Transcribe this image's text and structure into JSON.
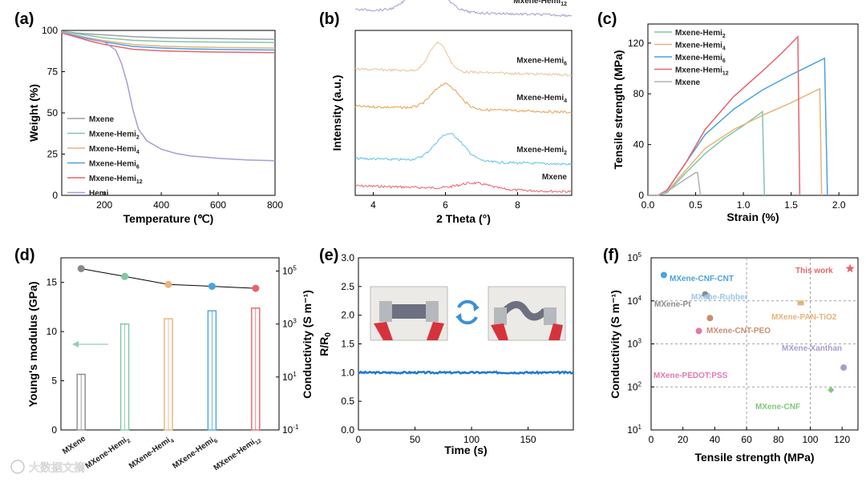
{
  "watermark": "大数据文摘",
  "chart_data": [
    {
      "panel": "(a)",
      "type": "line",
      "title": "",
      "xlabel": "Temperature (℃)",
      "ylabel": "Weight (%)",
      "xlim": [
        50,
        800
      ],
      "ylim": [
        0,
        100
      ],
      "xticks": [
        "200",
        "400",
        "600",
        "800"
      ],
      "yticks": [
        "0",
        "25",
        "50",
        "75",
        "100"
      ],
      "legend": "bottom-left",
      "series": [
        {
          "name": "Mxene",
          "color": "#9aa0a6",
          "x": [
            50,
            100,
            150,
            200,
            300,
            400,
            500,
            600,
            700,
            800
          ],
          "y": [
            99.5,
            98.5,
            97.8,
            97.3,
            96.2,
            95.6,
            95.2,
            95.0,
            94.8,
            94.6
          ]
        },
        {
          "name": "Mxene-Hemi2",
          "label_main": "Mxene-Hemi",
          "label_sub": "2",
          "color": "#7fc7a3",
          "x": [
            50,
            100,
            150,
            200,
            300,
            400,
            500,
            600,
            700,
            800
          ],
          "y": [
            99.5,
            98.0,
            96.8,
            95.5,
            94.0,
            93.4,
            93.1,
            92.9,
            92.8,
            92.7
          ]
        },
        {
          "name": "Mxene-Hemi4",
          "label_main": "Mxene-Hemi",
          "label_sub": "4",
          "color": "#e8b37a",
          "x": [
            50,
            100,
            150,
            200,
            300,
            400,
            500,
            600,
            700,
            800
          ],
          "y": [
            99.0,
            97.0,
            95.3,
            93.8,
            91.5,
            90.5,
            90.0,
            89.7,
            89.5,
            89.3
          ]
        },
        {
          "name": "Mxene-Hemi6",
          "label_main": "Mxene-Hemi",
          "label_sub": "6",
          "color": "#4aa3df",
          "x": [
            50,
            100,
            150,
            200,
            300,
            400,
            500,
            600,
            700,
            800
          ],
          "y": [
            99.0,
            96.5,
            94.6,
            93.0,
            90.3,
            89.3,
            88.8,
            88.5,
            88.3,
            88.1
          ]
        },
        {
          "name": "Mxene-Hemi12",
          "label_main": "Mxene-Hemi",
          "label_sub": "12",
          "color": "#e8636b",
          "x": [
            50,
            100,
            150,
            200,
            300,
            400,
            500,
            600,
            700,
            800
          ],
          "y": [
            98.5,
            96.0,
            93.5,
            91.5,
            88.6,
            87.6,
            87.2,
            86.9,
            86.7,
            86.5
          ]
        },
        {
          "name": "Hemi",
          "color": "#a89cd6",
          "x": [
            50,
            100,
            200,
            240,
            260,
            280,
            300,
            320,
            350,
            400,
            450,
            500,
            600,
            700,
            800
          ],
          "y": [
            99,
            97,
            93,
            88,
            80,
            68,
            52,
            40,
            33,
            28,
            25.5,
            24,
            22.5,
            21.5,
            21
          ]
        }
      ]
    },
    {
      "panel": "(b)",
      "type": "line",
      "xlabel": "2 Theta (°)",
      "ylabel": "Intensity (a.u.)",
      "xlim": [
        3.5,
        9.5
      ],
      "xticks": [
        "4",
        "6",
        "8"
      ],
      "series": [
        {
          "name": "Mxene",
          "label_main": "Mxene",
          "label_sub": "",
          "color": "#e8636b",
          "offset": 0,
          "peak": 6.8,
          "width": 0.6,
          "height": 0.12
        },
        {
          "name": "Mxene-Hemi2",
          "label_main": "Mxene-Hemi",
          "label_sub": "2",
          "color": "#62c2e8",
          "offset": 0.55,
          "peak": 6.1,
          "width": 0.55,
          "height": 0.55
        },
        {
          "name": "Mxene-Hemi4",
          "label_main": "Mxene-Hemi",
          "label_sub": "4",
          "color": "#e8a050",
          "offset": 1.6,
          "peak": 6.0,
          "width": 0.5,
          "height": 0.5
        },
        {
          "name": "Mxene-Hemi6",
          "label_main": "Mxene-Hemi",
          "label_sub": "6",
          "color": "#e8c49a",
          "offset": 2.35,
          "peak": 5.8,
          "width": 0.35,
          "height": 0.58
        },
        {
          "name": "Mxene-Hemi12",
          "label_main": "Mxene-Hemi",
          "label_sub": "12",
          "color": "#a89cd6",
          "offset": 3.55,
          "peak": 5.5,
          "width": 0.6,
          "height": 0.65
        }
      ]
    },
    {
      "panel": "(c)",
      "type": "line",
      "xlabel": "Strain (%)",
      "ylabel": "Tensile strength (MPa)",
      "xlim": [
        0,
        2.2
      ],
      "ylim": [
        0,
        135
      ],
      "xticks": [
        "0.0",
        "0.5",
        "1.0",
        "1.5",
        "2.0"
      ],
      "yticks": [
        "0",
        "40",
        "80",
        "120"
      ],
      "legend": "top-left",
      "series": [
        {
          "name": "Mxene-Hemi2",
          "label_main": "Mxene-Hemi",
          "label_sub": "2",
          "color": "#7fc7a3",
          "x": [
            0,
            0.1,
            0.2,
            0.4,
            0.6,
            0.8,
            1.0,
            1.2,
            1.22
          ],
          "y": [
            0,
            0,
            2,
            18,
            33,
            45,
            55,
            66,
            0
          ]
        },
        {
          "name": "Mxene-Hemi4",
          "label_main": "Mxene-Hemi",
          "label_sub": "4",
          "color": "#e8b37a",
          "x": [
            0,
            0.1,
            0.2,
            0.4,
            0.6,
            0.9,
            1.2,
            1.5,
            1.8,
            1.82
          ],
          "y": [
            0,
            0,
            3,
            20,
            37,
            52,
            63,
            73,
            84,
            0
          ]
        },
        {
          "name": "Mxene-Hemi6",
          "label_main": "Mxene-Hemi",
          "label_sub": "6",
          "color": "#4aa3df",
          "x": [
            0,
            0.1,
            0.2,
            0.4,
            0.6,
            0.9,
            1.2,
            1.5,
            1.85,
            1.88
          ],
          "y": [
            0,
            0,
            4,
            26,
            48,
            68,
            83,
            95,
            108,
            0
          ]
        },
        {
          "name": "Mxene-Hemi12",
          "label_main": "Mxene-Hemi",
          "label_sub": "12",
          "color": "#e8636b",
          "x": [
            0,
            0.1,
            0.2,
            0.4,
            0.6,
            0.9,
            1.2,
            1.4,
            1.57,
            1.59
          ],
          "y": [
            0,
            0,
            4,
            26,
            52,
            78,
            98,
            112,
            125,
            0
          ]
        },
        {
          "name": "Mxene",
          "label_main": "Mxene",
          "label_sub": "",
          "color": "#b0b0b0",
          "x": [
            0,
            0.1,
            0.2,
            0.3,
            0.4,
            0.5,
            0.52,
            0.55
          ],
          "y": [
            0,
            0,
            3,
            8,
            13,
            18,
            18,
            0
          ]
        }
      ]
    },
    {
      "panel": "(d)",
      "type": "bar+line",
      "ylabel": "Young's modulus (GPa)",
      "y2label": "Conductivity (S m⁻¹)",
      "ylim": [
        0,
        17.5
      ],
      "yticks": [
        "0",
        "5",
        "10",
        "15"
      ],
      "y2log": [
        -1,
        5.5
      ],
      "y2ticks": [
        {
          "base": "10",
          "exp": "-1"
        },
        {
          "base": "10",
          "exp": "1"
        },
        {
          "base": "10",
          "exp": "3"
        },
        {
          "base": "10",
          "exp": "5"
        }
      ],
      "categories": [
        {
          "main": "MXene",
          "sub": ""
        },
        {
          "main": "MXene-Hemi",
          "sub": "2"
        },
        {
          "main": "MXene-Hemi",
          "sub": "4"
        },
        {
          "main": "MXene-Hemi",
          "sub": "6"
        },
        {
          "main": "MXene-Hemi",
          "sub": "12"
        }
      ],
      "conductivity_log10": [
        1.1,
        3.0,
        3.2,
        3.5,
        3.6
      ],
      "modulus": [
        16.4,
        15.6,
        14.8,
        14.6,
        14.4
      ],
      "colors": [
        "#8a8a8a",
        "#7fc7a3",
        "#e8b37a",
        "#4aa3df",
        "#e8636b"
      ],
      "arrow_color": "#8fd0b0"
    },
    {
      "panel": "(e)",
      "type": "line",
      "xlabel": "Time (s)",
      "ylabel_main": "R/R",
      "ylabel_sub": "0",
      "xlim": [
        0,
        190
      ],
      "ylim": [
        0,
        3.0
      ],
      "xticks": [
        "0",
        "50",
        "100",
        "150"
      ],
      "yticks": [
        "0.0",
        "0.5",
        "1.0",
        "1.5",
        "2.0",
        "2.5",
        "3.0"
      ],
      "series": [
        {
          "name": "R/R0",
          "color": "#1f78d1",
          "value": 1.0
        }
      ],
      "inset": "Flat and bent film held by red-handled clips, cycle arrows between"
    },
    {
      "panel": "(f)",
      "type": "scatter",
      "xlabel": "Tensile strength (MPa)",
      "ylabel": "Conductivity (S m⁻¹)",
      "xlim": [
        0,
        130
      ],
      "ylog": [
        1,
        5
      ],
      "xticks": [
        "0",
        "20",
        "40",
        "60",
        "80",
        "100",
        "120"
      ],
      "yticks": [
        {
          "base": "10",
          "exp": "1"
        },
        {
          "base": "10",
          "exp": "2"
        },
        {
          "base": "10",
          "exp": "3"
        },
        {
          "base": "10",
          "exp": "4"
        },
        {
          "base": "10",
          "exp": "5"
        }
      ],
      "points": [
        {
          "label": "MXene-CNF-CNT",
          "x": 8,
          "log10y": 4.6,
          "color": "#4aa3df",
          "shape": "circle"
        },
        {
          "label": "MXene-Pt",
          "x": 34,
          "log10y": 4.15,
          "color": "#8a8a8a",
          "shape": "circle"
        },
        {
          "label": "MXene-Rubber",
          "x": 36,
          "log10y": 4.1,
          "color": "#9ec6e8",
          "shape": "arrow"
        },
        {
          "label": "MXene-CNT-PEO",
          "x": 37,
          "log10y": 3.6,
          "color": "#c89070",
          "shape": "circle"
        },
        {
          "label": "MXene-PEDOT:PSS",
          "x": 30,
          "log10y": 3.3,
          "color": "#e07ab0",
          "shape": "circle"
        },
        {
          "label": "MXene-PAN-TiO2",
          "x": 94,
          "log10y": 3.95,
          "color": "#e8b37a",
          "shape": "square"
        },
        {
          "label": "MXene-Xanthan",
          "x": 121,
          "log10y": 2.45,
          "color": "#a89cd6",
          "shape": "circle"
        },
        {
          "label": "MXene-CNF",
          "x": 113,
          "log10y": 1.93,
          "color": "#7fc77a",
          "shape": "diamond"
        },
        {
          "label": "This work",
          "x": 125,
          "log10y": 4.75,
          "color": "#e8636b",
          "shape": "star"
        }
      ]
    }
  ]
}
